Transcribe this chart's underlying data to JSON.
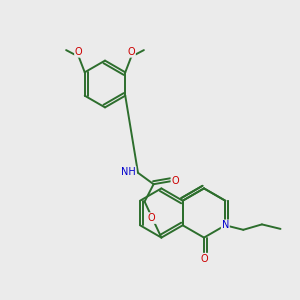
{
  "bg_color": "#ebebeb",
  "bond_color": "#2d6e2d",
  "atom_colors": {
    "N": "#0000cc",
    "O": "#cc0000",
    "C": "#2d6e2d"
  },
  "line_width": 1.4,
  "font_size": 7.0,
  "figsize": [
    3.0,
    3.0
  ],
  "dpi": 100
}
